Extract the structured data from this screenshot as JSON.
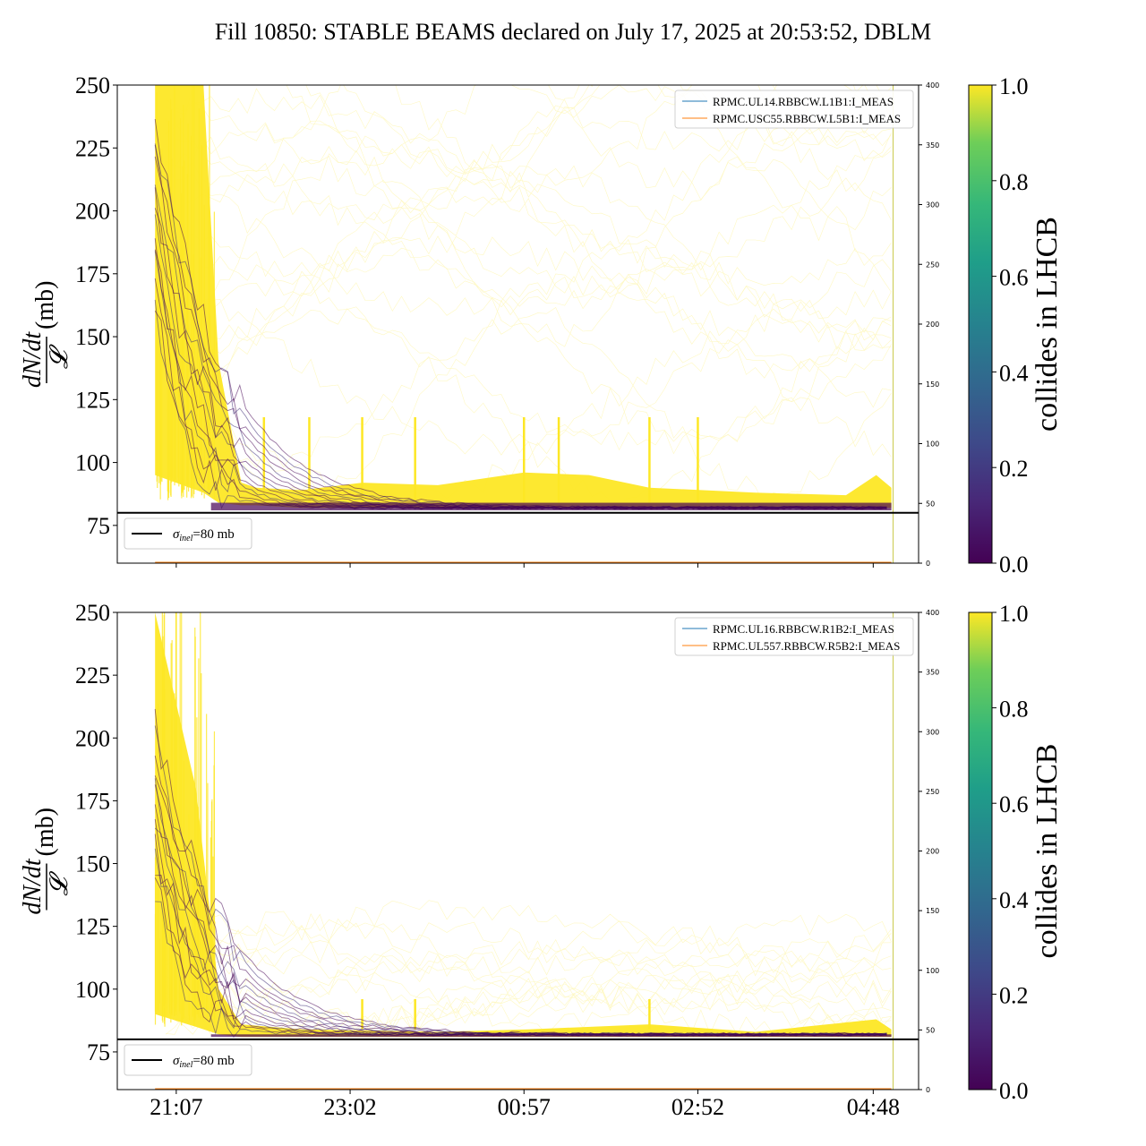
{
  "title": "Fill 10850: STABLE BEAMS declared on July 17, 2025 at 20:53:52, DBLM",
  "colors": {
    "viridis_low": "#440154",
    "viridis_mid": "#21918c",
    "viridis_high": "#fde725",
    "threshold_line": "#000000",
    "series_blue": "#1f77b4",
    "series_orange": "#ff7f0e"
  },
  "chart_data": [
    {
      "type": "line",
      "ylabel": "dN/dt / 𝓛 (mb)",
      "ylabel_parts": {
        "num": "dN/dt",
        "den": "𝓛",
        "unit": "(mb)"
      },
      "ylim": [
        60,
        250
      ],
      "yticks": [
        "75",
        "100",
        "125",
        "150",
        "175",
        "200",
        "225",
        "250"
      ],
      "secondary_ylim": [
        0,
        400
      ],
      "secondary_yticks": [
        "0",
        "50",
        "100",
        "150",
        "200",
        "250",
        "300",
        "350",
        "400"
      ],
      "xlim": [
        "20:28",
        "05:18"
      ],
      "xticks": [
        "21:07",
        "23:02",
        "00:57",
        "02:52",
        "04:48"
      ],
      "legend_position": "upper right",
      "series": [
        {
          "name": "RPMC.UL14.RBBCW.L1B1:I_MEAS",
          "color": "#1f77b4"
        },
        {
          "name": "RPMC.USC55.RBBCW.L5B1:I_MEAS",
          "color": "#ff7f0e"
        }
      ],
      "threshold": {
        "label_sym": "σ",
        "label_sub": "inel",
        "label_rest": "=80 mb",
        "value": 80
      },
      "colorbar": {
        "label": "collides in LHCB",
        "ticks": [
          "0.0",
          "0.2",
          "0.4",
          "0.6",
          "0.8",
          "1.0"
        ],
        "range": [
          0,
          1
        ]
      },
      "band_colliding": [
        {
          "t": "20:53",
          "low": 95,
          "high": 250
        },
        {
          "t": "21:25",
          "low": 88,
          "high": 250
        },
        {
          "t": "21:35",
          "low": 84,
          "high": 140
        },
        {
          "t": "21:50",
          "low": 83,
          "high": 92
        },
        {
          "t": "22:00",
          "low": 83,
          "high": 90
        },
        {
          "t": "22:30",
          "low": 82,
          "high": 89
        },
        {
          "t": "23:10",
          "low": 82,
          "high": 92
        },
        {
          "t": "00:00",
          "low": 82,
          "high": 91
        },
        {
          "t": "00:57",
          "low": 82,
          "high": 96
        },
        {
          "t": "01:40",
          "low": 82,
          "high": 95
        },
        {
          "t": "02:20",
          "low": 82,
          "high": 90
        },
        {
          "t": "03:30",
          "low": 82,
          "high": 88
        },
        {
          "t": "04:30",
          "low": 82,
          "high": 87
        },
        {
          "t": "04:50",
          "low": 82,
          "high": 95
        },
        {
          "t": "05:00",
          "low": 82,
          "high": 90
        }
      ]
    },
    {
      "type": "line",
      "ylabel": "dN/dt / 𝓛 (mb)",
      "ylabel_parts": {
        "num": "dN/dt",
        "den": "𝓛",
        "unit": "(mb)"
      },
      "ylim": [
        60,
        250
      ],
      "yticks": [
        "75",
        "100",
        "125",
        "150",
        "175",
        "200",
        "225",
        "250"
      ],
      "secondary_ylim": [
        0,
        400
      ],
      "secondary_yticks": [
        "0",
        "50",
        "100",
        "150",
        "200",
        "250",
        "300",
        "350",
        "400"
      ],
      "xlim": [
        "20:28",
        "05:18"
      ],
      "xticks": [
        "21:07",
        "23:02",
        "00:57",
        "02:52",
        "04:48"
      ],
      "legend_position": "upper right",
      "series": [
        {
          "name": "RPMC.UL16.RBBCW.R1B2:I_MEAS",
          "color": "#1f77b4"
        },
        {
          "name": "RPMC.UL557.RBBCW.R5B2:I_MEAS",
          "color": "#ff7f0e"
        }
      ],
      "threshold": {
        "label_sym": "σ",
        "label_sub": "inel",
        "label_rest": "=80 mb",
        "value": 80
      },
      "colorbar": {
        "label": "collides in LHCB",
        "ticks": [
          "0.0",
          "0.2",
          "0.4",
          "0.6",
          "0.8",
          "1.0"
        ],
        "range": [
          0,
          1
        ]
      },
      "band_colliding": [
        {
          "t": "20:53",
          "low": 90,
          "high": 250
        },
        {
          "t": "21:20",
          "low": 85,
          "high": 180
        },
        {
          "t": "21:35",
          "low": 82,
          "high": 100
        },
        {
          "t": "21:50",
          "low": 81,
          "high": 86
        },
        {
          "t": "22:30",
          "low": 81,
          "high": 84
        },
        {
          "t": "00:00",
          "low": 81,
          "high": 83
        },
        {
          "t": "01:00",
          "low": 81,
          "high": 84
        },
        {
          "t": "02:20",
          "low": 81,
          "high": 86
        },
        {
          "t": "03:30",
          "low": 81,
          "high": 83
        },
        {
          "t": "04:50",
          "low": 81,
          "high": 88
        },
        {
          "t": "05:00",
          "low": 81,
          "high": 84
        }
      ]
    }
  ]
}
